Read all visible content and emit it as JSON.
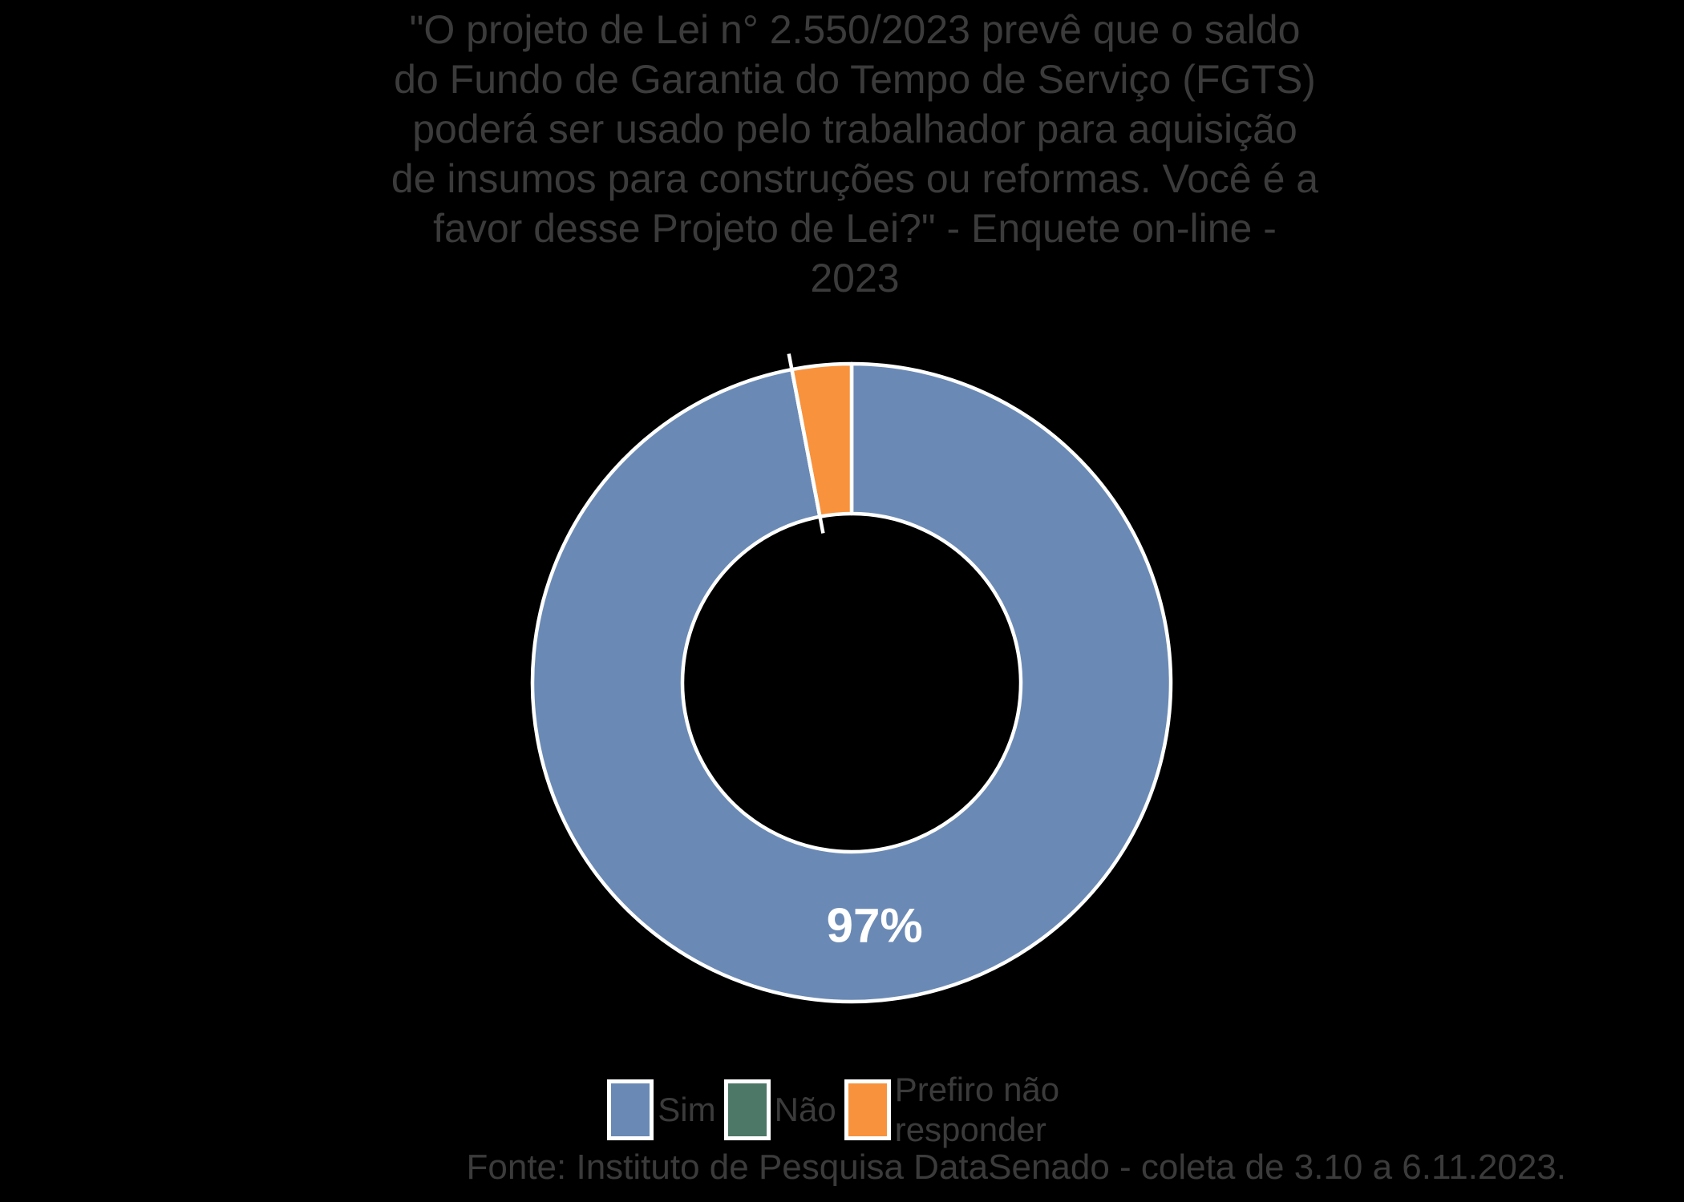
{
  "page": {
    "background_color": "#000000"
  },
  "chart_data": {
    "type": "pie",
    "subtype": "donut",
    "title": "\"O projeto de Lei n° 2.550/2023 prevê que o saldo\ndo Fundo de Garantia do Tempo de Serviço (FGTS)\npoderá ser usado pelo trabalhador para aquisição\nde insumos para construções ou reformas. Você é a\nfavor desse Projeto de Lei?\" - Enquete on-line -\n2023",
    "slices": [
      {
        "label": "Sim",
        "value": 97,
        "color": "#6A8AB5",
        "data_label": "97%"
      },
      {
        "label": "Não",
        "value": 0,
        "color": "#4D7767",
        "data_label": ""
      },
      {
        "label": "Prefiro não responder",
        "value": 3,
        "color": "#F8923D",
        "data_label": ""
      }
    ],
    "total": 100,
    "inner_radius_ratio": 0.53,
    "slice_border_color": "#FFFFFF",
    "data_label_color": "#FFFFFF",
    "text_color": "#3B3B3B",
    "legend_position": "bottom",
    "leader_line": true,
    "source": "Fonte: Instituto de Pesquisa DataSenado - coleta de 3.10 a 6.11.2023."
  }
}
